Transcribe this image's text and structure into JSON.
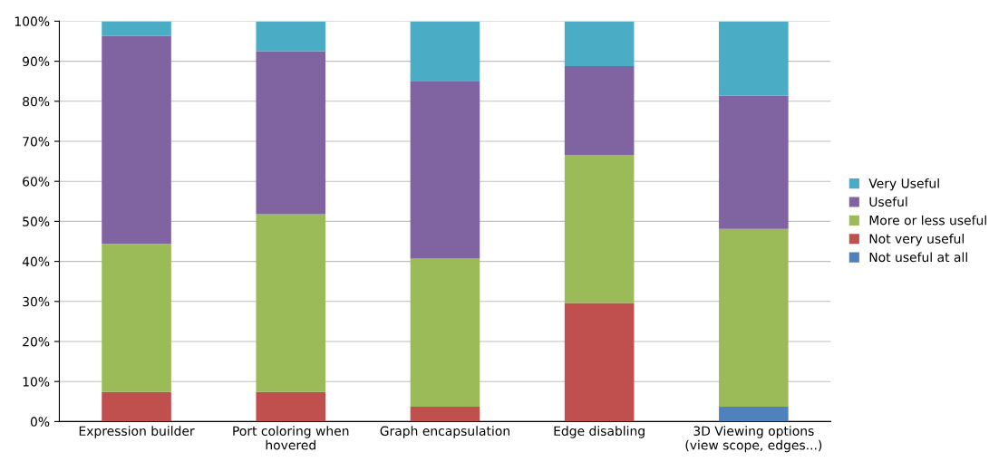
{
  "chart_data": {
    "type": "bar",
    "stacked": true,
    "categories": [
      "Expression builder",
      "Port coloring when\nhovered",
      "Graph encapsulation",
      "Edge disabling",
      "3D Viewing options\n(view scope, edges...)"
    ],
    "series": [
      {
        "name": "Not useful at all",
        "color": "#4f81bd",
        "values": [
          0,
          0,
          0,
          0,
          3.7
        ]
      },
      {
        "name": "Not very useful",
        "color": "#c0504d",
        "values": [
          7.4,
          7.4,
          3.7,
          29.6,
          0
        ]
      },
      {
        "name": "More or less useful",
        "color": "#9bbb59",
        "values": [
          37.0,
          44.4,
          37.0,
          37.0,
          44.4
        ]
      },
      {
        "name": "Useful",
        "color": "#8064a2",
        "values": [
          51.9,
          40.7,
          44.4,
          22.2,
          33.3
        ]
      },
      {
        "name": "Very Useful",
        "color": "#4bacc6",
        "values": [
          3.7,
          7.4,
          14.8,
          11.1,
          18.5
        ]
      }
    ],
    "ylim": [
      0,
      100
    ],
    "yticks": [
      {
        "value": 0,
        "label": "0%"
      },
      {
        "value": 10,
        "label": "10%"
      },
      {
        "value": 20,
        "label": "20%"
      },
      {
        "value": 30,
        "label": "30%"
      },
      {
        "value": 40,
        "label": "40%"
      },
      {
        "value": 50,
        "label": "50%"
      },
      {
        "value": 60,
        "label": "60%"
      },
      {
        "value": 70,
        "label": "70%"
      },
      {
        "value": 80,
        "label": "80%"
      },
      {
        "value": 90,
        "label": "90%"
      },
      {
        "value": 100,
        "label": "100%"
      }
    ],
    "grid": "y",
    "legend": "right"
  }
}
